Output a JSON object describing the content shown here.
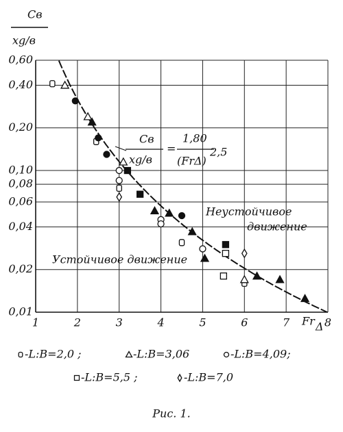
{
  "chart_data": {
    "type": "scatter",
    "y_label_numerator": "Cв",
    "y_label_denominator": "xg/в",
    "x_label": "Fr",
    "x_label_sub": "Δ",
    "xlim": [
      1,
      8
    ],
    "xticks": [
      1,
      2,
      3,
      4,
      5,
      6,
      7,
      8
    ],
    "ylim": [
      0.01,
      0.6
    ],
    "log_y": true,
    "grid": true,
    "yticks": [
      {
        "value": 0.6,
        "label": "0,60"
      },
      {
        "value": 0.4,
        "label": "0,40"
      },
      {
        "value": 0.2,
        "label": "0,20"
      },
      {
        "value": 0.1,
        "label": "0,10"
      },
      {
        "value": 0.08,
        "label": "0,08"
      },
      {
        "value": 0.06,
        "label": "0,06"
      },
      {
        "value": 0.04,
        "label": "0,04"
      },
      {
        "value": 0.02,
        "label": "0,02"
      },
      {
        "value": 0.01,
        "label": "0,01"
      }
    ],
    "curve": {
      "lhs_numerator": "Cв",
      "lhs_denominator": "xg/в",
      "equals": "=",
      "coefficient": {
        "value": 1.8,
        "label": "1,80"
      },
      "rhs_denominator": "(FrΔ)",
      "exponent": {
        "value": 2.5,
        "label": "2,5"
      }
    },
    "annotations": [
      "Неустойчивое",
      "движение",
      "Устойчивое движение"
    ],
    "series": [
      {
        "name": "-L:B=2,0 ;",
        "marker": "oval",
        "filled": false,
        "color": "#111",
        "x": [
          1.4,
          2.45,
          3.0,
          4.5,
          6.0
        ],
        "values": [
          0.41,
          0.16,
          0.075,
          0.031,
          0.016
        ]
      },
      {
        "name": "-L:B=3,06",
        "marker": "triangle",
        "filled": false,
        "color": "#111",
        "x": [
          1.7,
          2.25,
          3.1,
          6.0
        ],
        "values": [
          0.4,
          0.24,
          0.115,
          0.017
        ]
      },
      {
        "name": "-L:B=4,09;",
        "marker": "circle",
        "filled": false,
        "color": "#111",
        "x": [
          3.0,
          3.0,
          4.0,
          4.0,
          5.0
        ],
        "values": [
          0.1,
          0.085,
          0.045,
          0.042,
          0.028
        ]
      },
      {
        "name": "-L:B=5,5 ;",
        "marker": "square",
        "filled": false,
        "color": "#111",
        "x": [
          5.55,
          5.5
        ],
        "values": [
          0.026,
          0.018
        ]
      },
      {
        "name": "-L:B=7,0",
        "marker": "diamond",
        "filled": false,
        "color": "#111",
        "x": [
          3.0,
          6.0
        ],
        "values": [
          0.065,
          0.026
        ]
      },
      {
        "marker": "circle",
        "filled": true,
        "color": "#111",
        "x": [
          1.95,
          2.5,
          2.7,
          4.5
        ],
        "values": [
          0.31,
          0.17,
          0.13,
          0.048
        ]
      },
      {
        "marker": "triangle",
        "filled": true,
        "color": "#111",
        "x": [
          2.35,
          3.85,
          4.2,
          4.75,
          5.05,
          6.3,
          6.85,
          7.45
        ],
        "values": [
          0.22,
          0.052,
          0.05,
          0.037,
          0.024,
          0.018,
          0.017,
          0.0125
        ]
      },
      {
        "marker": "square",
        "filled": true,
        "color": "#111",
        "x": [
          3.2,
          3.5,
          5.55
        ],
        "values": [
          0.1,
          0.068,
          0.03
        ]
      }
    ],
    "caption": "Рис. 1."
  }
}
